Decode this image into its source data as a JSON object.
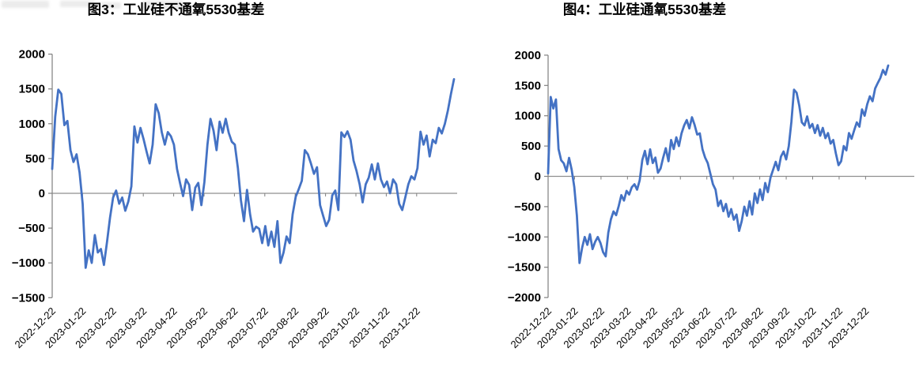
{
  "page": {
    "background": "#ffffff",
    "figure_titles": {
      "left": "图3：工业硅不通氧5530基差",
      "right": "图4：工业硅通氧5530基差"
    }
  },
  "chart_data": [
    {
      "type": "line",
      "title": "图3：工业硅不通氧5530基差",
      "legend": "none",
      "grid": "none",
      "plot_background": "#ffffff",
      "line_color": "#4472C4",
      "axis_color": "#7f7f7f",
      "zero_line_color": "#8f8f8f",
      "ylim": [
        -1500,
        2000
      ],
      "y_tick_labels": [
        "2000",
        "1500",
        "1000",
        "500",
        "0",
        "−500",
        "−1000",
        "−1500"
      ],
      "x_tick_labels": [
        "2022-12-22",
        "2023-01-22",
        "2023-02-22",
        "2023-03-22",
        "2023-04-22",
        "2023-05-22",
        "2023-06-22",
        "2023-07-22",
        "2023-08-22",
        "2023-09-22",
        "2023-10-22",
        "2023-11-22",
        "2023-12-22"
      ],
      "x_ticks_monthly": true,
      "series": [
        {
          "name": "工业硅不通氧5530基差",
          "color": "#4472C4",
          "values": [
            350,
            1100,
            1490,
            1430,
            980,
            1040,
            620,
            450,
            560,
            300,
            -150,
            -1070,
            -820,
            -1000,
            -600,
            -850,
            -800,
            -1030,
            -700,
            -350,
            -60,
            40,
            -150,
            -60,
            -250,
            -120,
            100,
            960,
            730,
            940,
            780,
            600,
            430,
            700,
            1280,
            1150,
            880,
            700,
            880,
            820,
            700,
            350,
            150,
            -40,
            200,
            120,
            -240,
            80,
            150,
            -170,
            160,
            700,
            1070,
            900,
            620,
            1030,
            870,
            1070,
            870,
            740,
            700,
            360,
            -100,
            -400,
            50,
            -300,
            -550,
            -480,
            -510,
            -715,
            -470,
            -750,
            -550,
            -770,
            -400,
            -1000,
            -850,
            -620,
            -715,
            -300,
            -50,
            60,
            180,
            620,
            560,
            430,
            280,
            375,
            -170,
            -320,
            -470,
            -380,
            -30,
            40,
            -240,
            875,
            810,
            890,
            770,
            470,
            320,
            130,
            -130,
            130,
            225,
            415,
            200,
            430,
            200,
            90,
            170,
            0,
            200,
            130,
            -150,
            -240,
            -60,
            130,
            245,
            200,
            360,
            885,
            700,
            830,
            530,
            770,
            720,
            940,
            860,
            1000,
            1190,
            1430,
            1640
          ]
        }
      ]
    },
    {
      "type": "line",
      "title": "图4：工业硅通氧5530基差",
      "legend": "none",
      "grid": "none",
      "plot_background": "#ffffff",
      "line_color": "#4472C4",
      "axis_color": "#7f7f7f",
      "zero_line_color": "#8f8f8f",
      "ylim": [
        -2000,
        2000
      ],
      "y_tick_labels": [
        "2000",
        "1500",
        "1000",
        "500",
        "0",
        "−500",
        "−1000",
        "−1500",
        "−2000"
      ],
      "x_tick_labels": [
        "2022-12-22",
        "2023-01-22",
        "2023-02-22",
        "2023-03-22",
        "2023-04-22",
        "2023-05-22",
        "2023-06-22",
        "2023-07-22",
        "2023-08-22",
        "2023-09-22",
        "2023-10-22",
        "2023-11-22",
        "2023-12-22"
      ],
      "x_ticks_monthly": true,
      "series": [
        {
          "name": "工业硅通氧5530基差",
          "color": "#4472C4",
          "values": [
            50,
            1310,
            1120,
            1270,
            450,
            265,
            215,
            85,
            305,
            110,
            -175,
            -650,
            -1430,
            -1180,
            -1000,
            -1130,
            -955,
            -1200,
            -1080,
            -1000,
            -1100,
            -1250,
            -1320,
            -930,
            -710,
            -580,
            -640,
            -490,
            -310,
            -400,
            -240,
            -300,
            -180,
            -130,
            -220,
            -65,
            270,
            420,
            200,
            445,
            220,
            310,
            60,
            130,
            310,
            465,
            250,
            600,
            450,
            645,
            500,
            710,
            840,
            930,
            790,
            975,
            850,
            690,
            710,
            445,
            310,
            220,
            45,
            -130,
            -220,
            -490,
            -400,
            -575,
            -455,
            -665,
            -540,
            -715,
            -630,
            -900,
            -740,
            -500,
            -650,
            -410,
            -630,
            -280,
            -440,
            -215,
            -390,
            -110,
            -260,
            -20,
            110,
            240,
            100,
            325,
            410,
            280,
            500,
            900,
            1430,
            1380,
            1170,
            890,
            840,
            990,
            800,
            865,
            715,
            845,
            670,
            800,
            630,
            715,
            540,
            600,
            380,
            185,
            250,
            500,
            430,
            715,
            620,
            760,
            890,
            820,
            1105,
            1000,
            1190,
            1320,
            1240,
            1450,
            1540,
            1625,
            1755,
            1680,
            1830
          ]
        }
      ]
    }
  ]
}
